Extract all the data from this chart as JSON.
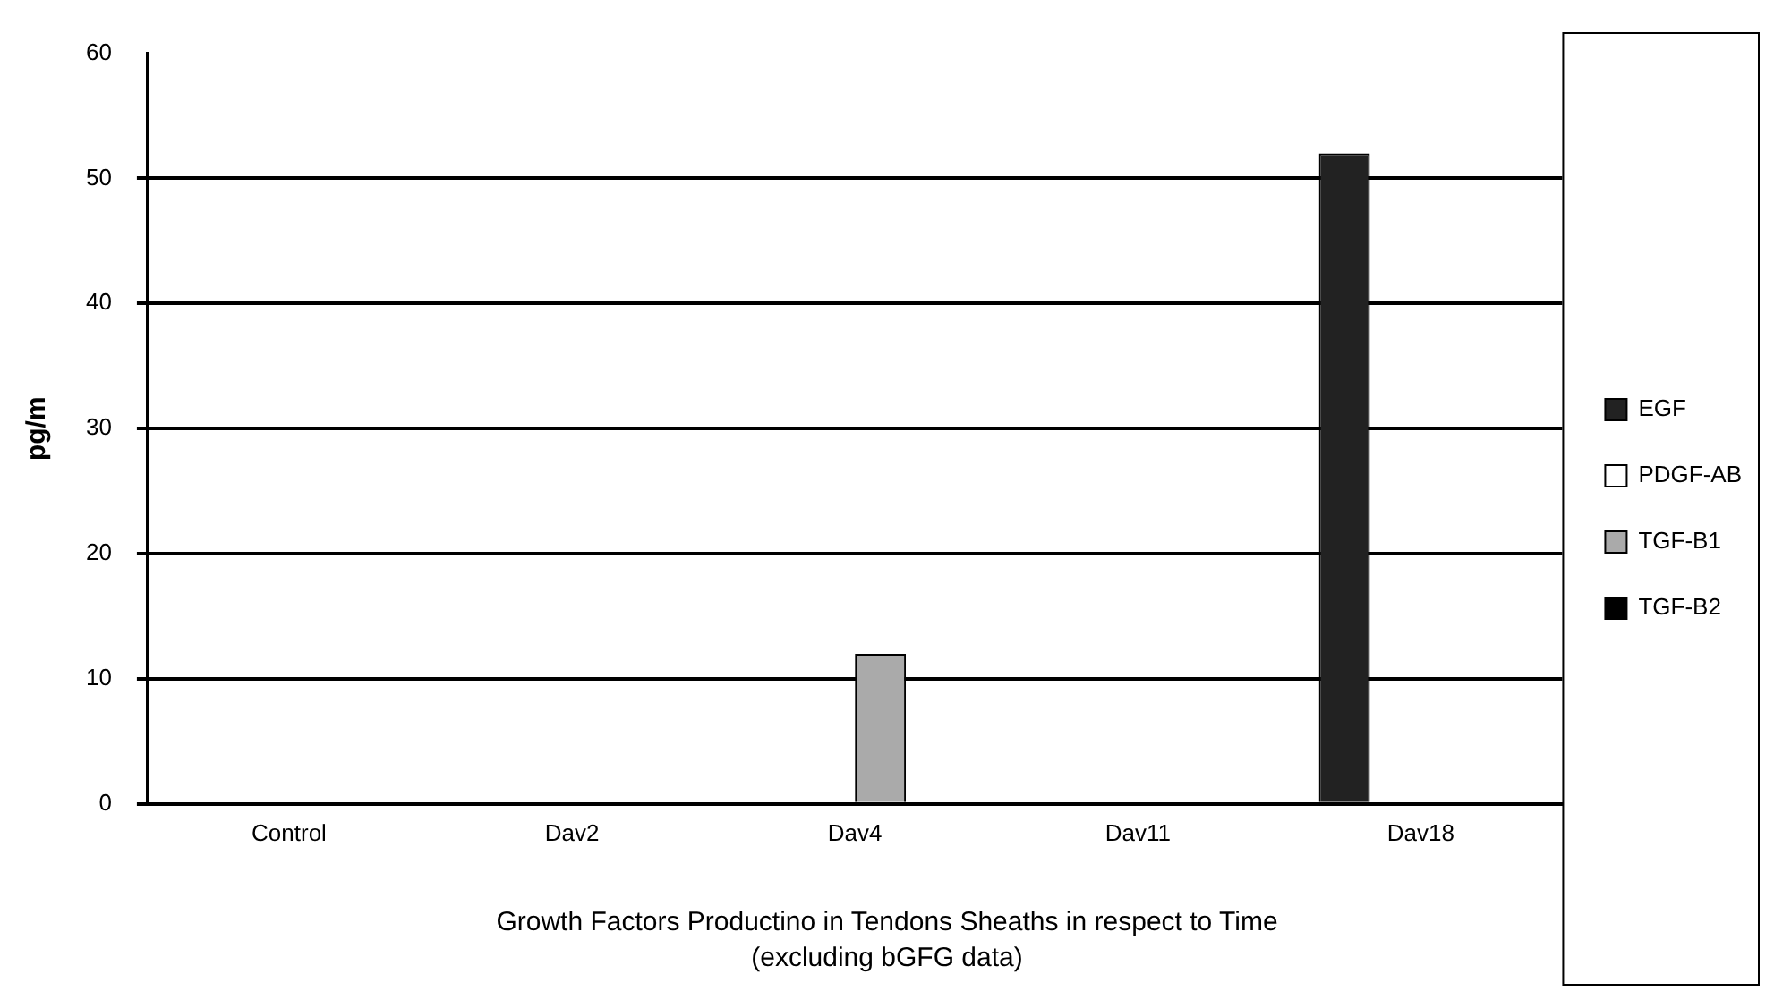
{
  "chart_data": {
    "type": "bar",
    "title": "Growth Factors Productino in Tendons Sheaths in respect to Time",
    "subtitle": "(excluding bGFG data)",
    "ylabel": "pg/m",
    "categories": [
      "Control",
      "Dav2",
      "Dav4",
      "Dav11",
      "Dav18"
    ],
    "series": [
      {
        "name": "EGF",
        "color": "#222222",
        "values": [
          0,
          0,
          0,
          0,
          52
        ]
      },
      {
        "name": "PDGF-AB",
        "color": "#ffffff",
        "values": [
          0,
          0,
          0,
          0,
          0
        ]
      },
      {
        "name": "TGF-B1",
        "color": "#aaaaaa",
        "values": [
          0,
          0,
          12,
          0,
          0
        ]
      },
      {
        "name": "TGF-B2",
        "color": "#000000",
        "values": [
          0,
          0,
          0,
          0,
          0
        ]
      }
    ],
    "ylim": [
      0,
      60
    ],
    "yticks": [
      0,
      10,
      20,
      30,
      40,
      50,
      60
    ],
    "grid": "y",
    "legend": "right"
  }
}
